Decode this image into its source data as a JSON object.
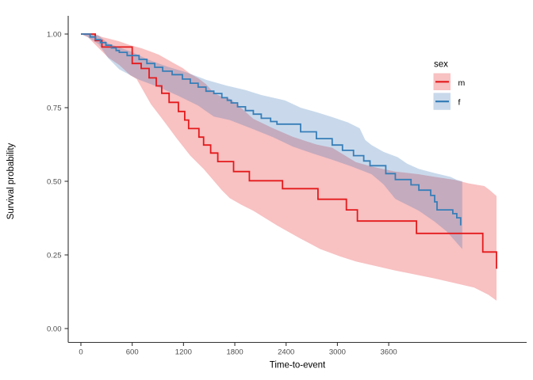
{
  "chart_data": {
    "type": "line",
    "subtype": "kaplan-meier-step-curves-with-confidence-bands",
    "title": "",
    "xlabel": "Time-to-event",
    "ylabel": "Survival probability",
    "x_ticks": [
      0,
      600,
      1200,
      1800,
      2400,
      3000,
      3600
    ],
    "x_tick_labels": [
      "0",
      "600",
      "1200",
      "1800",
      "2400",
      "3000",
      "3600"
    ],
    "y_ticks": [
      0.0,
      0.25,
      0.5,
      0.75,
      1.0
    ],
    "y_tick_labels": [
      "0.00",
      "0.25",
      "0.50",
      "0.75",
      "1.00"
    ],
    "xlim": [
      0,
      5200
    ],
    "ylim": [
      0.0,
      1.0
    ],
    "grid": false,
    "legend": {
      "title": "sex",
      "position": "right",
      "entries": [
        {
          "label": "m",
          "color": "#E41A1C"
        },
        {
          "label": "f",
          "color": "#377EB8"
        }
      ]
    },
    "axis_colors": {
      "line": "#333333",
      "tick_label": "#4d4d4d"
    },
    "series": [
      {
        "name": "m",
        "color": "#E41A1C",
        "band_color": "rgba(228,26,28,0.27)",
        "steps": [
          [
            0,
            1.0
          ],
          [
            168,
            0.978
          ],
          [
            246,
            0.956
          ],
          [
            600,
            0.9
          ],
          [
            705,
            0.883
          ],
          [
            798,
            0.851
          ],
          [
            881,
            0.824
          ],
          [
            945,
            0.799
          ],
          [
            1032,
            0.768
          ],
          [
            1140,
            0.737
          ],
          [
            1214,
            0.708
          ],
          [
            1260,
            0.679
          ],
          [
            1380,
            0.65
          ],
          [
            1435,
            0.623
          ],
          [
            1518,
            0.596
          ],
          [
            1601,
            0.567
          ],
          [
            1786,
            0.533
          ],
          [
            1970,
            0.502
          ],
          [
            2358,
            0.475
          ],
          [
            2773,
            0.439
          ],
          [
            3105,
            0.403
          ],
          [
            3234,
            0.365
          ],
          [
            3925,
            0.323
          ],
          [
            4700,
            0.26
          ],
          [
            4861,
            0.203
          ]
        ],
        "band_upper": [
          [
            0,
            1.0
          ],
          [
            168,
            1.0
          ],
          [
            246,
            0.99
          ],
          [
            320,
            0.985
          ],
          [
            449,
            0.975
          ],
          [
            578,
            0.962
          ],
          [
            707,
            0.952
          ],
          [
            818,
            0.94
          ],
          [
            910,
            0.93
          ],
          [
            1002,
            0.915
          ],
          [
            1094,
            0.9
          ],
          [
            1187,
            0.885
          ],
          [
            1279,
            0.865
          ],
          [
            1371,
            0.85
          ],
          [
            1463,
            0.83
          ],
          [
            1555,
            0.8
          ],
          [
            1648,
            0.787
          ],
          [
            1740,
            0.78
          ],
          [
            1832,
            0.76
          ],
          [
            2017,
            0.712
          ],
          [
            2247,
            0.68
          ],
          [
            2477,
            0.651
          ],
          [
            2754,
            0.625
          ],
          [
            2939,
            0.614
          ],
          [
            3215,
            0.565
          ],
          [
            3400,
            0.55
          ],
          [
            3677,
            0.533
          ],
          [
            3953,
            0.524
          ],
          [
            4137,
            0.515
          ],
          [
            4368,
            0.505
          ],
          [
            4534,
            0.493
          ],
          [
            4718,
            0.484
          ],
          [
            4783,
            0.47
          ],
          [
            4861,
            0.45
          ]
        ],
        "band_lower": [
          [
            0,
            1.0
          ],
          [
            80,
            0.99
          ],
          [
            182,
            0.96
          ],
          [
            320,
            0.92
          ],
          [
            449,
            0.895
          ],
          [
            578,
            0.86
          ],
          [
            652,
            0.847
          ],
          [
            818,
            0.762
          ],
          [
            974,
            0.703
          ],
          [
            1122,
            0.645
          ],
          [
            1279,
            0.587
          ],
          [
            1435,
            0.542
          ],
          [
            1648,
            0.47
          ],
          [
            1740,
            0.443
          ],
          [
            1878,
            0.42
          ],
          [
            2017,
            0.4
          ],
          [
            2293,
            0.35
          ],
          [
            2570,
            0.305
          ],
          [
            2800,
            0.27
          ],
          [
            3031,
            0.245
          ],
          [
            3215,
            0.228
          ],
          [
            3677,
            0.197
          ],
          [
            4137,
            0.17
          ],
          [
            4599,
            0.139
          ],
          [
            4764,
            0.115
          ],
          [
            4861,
            0.095
          ]
        ]
      },
      {
        "name": "f",
        "color": "#377EB8",
        "band_color": "rgba(55,115,180,0.27)",
        "steps": [
          [
            0,
            1.0
          ],
          [
            108,
            0.99
          ],
          [
            172,
            0.981
          ],
          [
            228,
            0.971
          ],
          [
            292,
            0.962
          ],
          [
            357,
            0.953
          ],
          [
            412,
            0.944
          ],
          [
            449,
            0.938
          ],
          [
            541,
            0.927
          ],
          [
            680,
            0.914
          ],
          [
            772,
            0.9
          ],
          [
            864,
            0.887
          ],
          [
            956,
            0.874
          ],
          [
            1067,
            0.862
          ],
          [
            1187,
            0.847
          ],
          [
            1279,
            0.833
          ],
          [
            1371,
            0.82
          ],
          [
            1463,
            0.806
          ],
          [
            1555,
            0.798
          ],
          [
            1648,
            0.784
          ],
          [
            1712,
            0.775
          ],
          [
            1758,
            0.766
          ],
          [
            1832,
            0.753
          ],
          [
            1925,
            0.74
          ],
          [
            2017,
            0.728
          ],
          [
            2109,
            0.714
          ],
          [
            2219,
            0.703
          ],
          [
            2293,
            0.694
          ],
          [
            2570,
            0.668
          ],
          [
            2754,
            0.645
          ],
          [
            2939,
            0.623
          ],
          [
            3059,
            0.605
          ],
          [
            3188,
            0.587
          ],
          [
            3308,
            0.569
          ],
          [
            3381,
            0.553
          ],
          [
            3566,
            0.526
          ],
          [
            3677,
            0.506
          ],
          [
            3861,
            0.488
          ],
          [
            3953,
            0.47
          ],
          [
            4091,
            0.452
          ],
          [
            4137,
            0.43
          ],
          [
            4165,
            0.403
          ],
          [
            4350,
            0.39
          ],
          [
            4396,
            0.376
          ],
          [
            4442,
            0.35
          ]
        ],
        "band_upper": [
          [
            0,
            1.0
          ],
          [
            108,
            1.0
          ],
          [
            209,
            0.995
          ],
          [
            320,
            0.968
          ],
          [
            449,
            0.955
          ],
          [
            587,
            0.94
          ],
          [
            781,
            0.914
          ],
          [
            1002,
            0.89
          ],
          [
            1242,
            0.869
          ],
          [
            1463,
            0.845
          ],
          [
            1703,
            0.825
          ],
          [
            1925,
            0.81
          ],
          [
            2109,
            0.793
          ],
          [
            2385,
            0.775
          ],
          [
            2570,
            0.75
          ],
          [
            2754,
            0.735
          ],
          [
            2939,
            0.718
          ],
          [
            3123,
            0.7
          ],
          [
            3261,
            0.68
          ],
          [
            3326,
            0.64
          ],
          [
            3400,
            0.623
          ],
          [
            3538,
            0.6
          ],
          [
            3704,
            0.582
          ],
          [
            3815,
            0.56
          ],
          [
            3953,
            0.542
          ],
          [
            4137,
            0.528
          ],
          [
            4322,
            0.515
          ],
          [
            4396,
            0.505
          ],
          [
            4460,
            0.5
          ]
        ],
        "band_lower": [
          [
            0,
            1.0
          ],
          [
            80,
            0.99
          ],
          [
            209,
            0.965
          ],
          [
            320,
            0.918
          ],
          [
            449,
            0.88
          ],
          [
            680,
            0.845
          ],
          [
            910,
            0.82
          ],
          [
            1140,
            0.79
          ],
          [
            1371,
            0.757
          ],
          [
            1555,
            0.72
          ],
          [
            1740,
            0.708
          ],
          [
            2017,
            0.677
          ],
          [
            2247,
            0.65
          ],
          [
            2477,
            0.618
          ],
          [
            2708,
            0.595
          ],
          [
            2939,
            0.573
          ],
          [
            3169,
            0.55
          ],
          [
            3400,
            0.524
          ],
          [
            3538,
            0.49
          ],
          [
            3677,
            0.44
          ],
          [
            3815,
            0.42
          ],
          [
            3953,
            0.4
          ],
          [
            4137,
            0.363
          ],
          [
            4276,
            0.33
          ],
          [
            4368,
            0.3
          ],
          [
            4460,
            0.27
          ]
        ]
      }
    ]
  }
}
